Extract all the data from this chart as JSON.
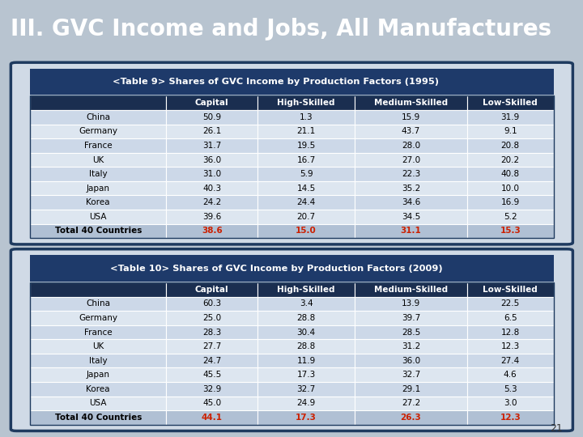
{
  "title": "III. GVC Income and Jobs, All Manufactures",
  "title_bg": "#1e3a5f",
  "title_color": "#ffffff",
  "slide_bg": "#b8c4d0",
  "table1_title": "<Table 9> Shares of GVC Income by Production Factors (1995)",
  "table2_title": "<Table 10> Shares of GVC Income by Production Factors (2009)",
  "col_headers": [
    "Capital",
    "High-Skilled",
    "Medium-Skilled",
    "Low-Skilled"
  ],
  "row_labels": [
    "China",
    "Germany",
    "France",
    "UK",
    "Italy",
    "Japan",
    "Korea",
    "USA",
    "Total 40 Countries"
  ],
  "table1_data": [
    [
      "50.9",
      "1.3",
      "15.9",
      "31.9"
    ],
    [
      "26.1",
      "21.1",
      "43.7",
      "9.1"
    ],
    [
      "31.7",
      "19.5",
      "28.0",
      "20.8"
    ],
    [
      "36.0",
      "16.7",
      "27.0",
      "20.2"
    ],
    [
      "31.0",
      "5.9",
      "22.3",
      "40.8"
    ],
    [
      "40.3",
      "14.5",
      "35.2",
      "10.0"
    ],
    [
      "24.2",
      "24.4",
      "34.6",
      "16.9"
    ],
    [
      "39.6",
      "20.7",
      "34.5",
      "5.2"
    ],
    [
      "38.6",
      "15.0",
      "31.1",
      "15.3"
    ]
  ],
  "table2_data": [
    [
      "60.3",
      "3.4",
      "13.9",
      "22.5"
    ],
    [
      "25.0",
      "28.8",
      "39.7",
      "6.5"
    ],
    [
      "28.3",
      "30.4",
      "28.5",
      "12.8"
    ],
    [
      "27.7",
      "28.8",
      "31.2",
      "12.3"
    ],
    [
      "24.7",
      "11.9",
      "36.0",
      "27.4"
    ],
    [
      "45.5",
      "17.3",
      "32.7",
      "4.6"
    ],
    [
      "32.9",
      "32.7",
      "29.1",
      "5.3"
    ],
    [
      "45.0",
      "24.9",
      "27.2",
      "3.0"
    ],
    [
      "44.1",
      "17.3",
      "26.3",
      "12.3"
    ]
  ],
  "header_bg": "#1a2e50",
  "header_color": "#ffffff",
  "row_bg_light": "#ccd8e8",
  "row_bg_lighter": "#dde6f0",
  "total_row_bg": "#b0c0d4",
  "total_color": "#cc2000",
  "normal_color": "#000000",
  "table_outer_border": "#1e3a5f",
  "table_title_bg": "#1e3a6a",
  "table_title_color": "#ffffff",
  "page_num": "21"
}
